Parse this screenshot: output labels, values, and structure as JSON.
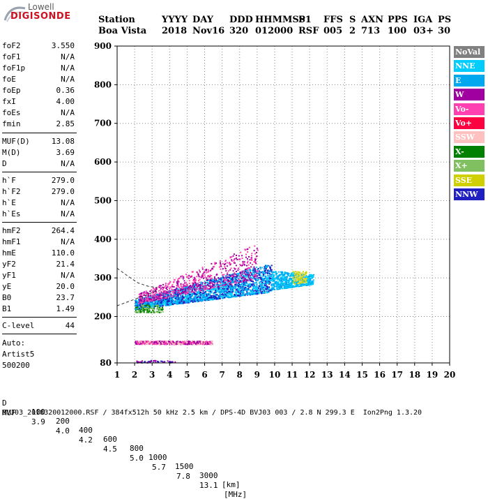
{
  "logo": {
    "line1": "Lowell",
    "line2": "DIGISONDE"
  },
  "header": {
    "line1": [
      "Station",
      "YYYY",
      "DAY",
      "DDD",
      "HHMMSS",
      "P1",
      "FFS",
      "S",
      "AXN",
      "PPS",
      "IGA",
      "PS"
    ],
    "line2": [
      "Boa Vista",
      "2018",
      "Nov16",
      "320",
      "012000",
      "RSF",
      "005",
      "2",
      "713",
      "100",
      "03+",
      "30"
    ]
  },
  "params_group1": [
    {
      "label": "foF2",
      "value": "3.550"
    },
    {
      "label": "foF1",
      "value": "N/A"
    },
    {
      "label": "foF1p",
      "value": "N/A"
    },
    {
      "label": "foE",
      "value": "N/A"
    },
    {
      "label": "foEp",
      "value": "0.36"
    },
    {
      "label": "fxI",
      "value": "4.00"
    },
    {
      "label": "foEs",
      "value": "N/A"
    },
    {
      "label": "fmin",
      "value": "2.85"
    }
  ],
  "params_group2": [
    {
      "label": "MUF(D)",
      "value": "13.08"
    },
    {
      "label": "M(D)",
      "value": "3.69"
    },
    {
      "label": "D",
      "value": "N/A"
    }
  ],
  "params_group3": [
    {
      "label": "h`F",
      "value": "279.0"
    },
    {
      "label": "h`F2",
      "value": "279.0"
    },
    {
      "label": "h`E",
      "value": "N/A"
    },
    {
      "label": "h`Es",
      "value": "N/A"
    }
  ],
  "params_group4": [
    {
      "label": "hmF2",
      "value": "264.4"
    },
    {
      "label": "hmF1",
      "value": "N/A"
    },
    {
      "label": "hmE",
      "value": "110.0"
    },
    {
      "label": "yF2",
      "value": "21.4"
    },
    {
      "label": "yF1",
      "value": "N/A"
    },
    {
      "label": "yE",
      "value": "20.0"
    },
    {
      "label": "B0",
      "value": "23.7"
    },
    {
      "label": "B1",
      "value": "1.49"
    }
  ],
  "params_group5": [
    {
      "label": "C-level",
      "value": "44"
    }
  ],
  "auto": {
    "line1": "Auto:",
    "line2": "Artist5",
    "line3": "500200"
  },
  "legend": [
    {
      "label": "NoVal",
      "bg": "#808080",
      "fg": "#ffffff"
    },
    {
      "label": "NNE",
      "bg": "#00ccff",
      "fg": "#ffffff"
    },
    {
      "label": "E",
      "bg": "#00a8f0",
      "fg": "#ffffff"
    },
    {
      "label": "W",
      "bg": "#a000a0",
      "fg": "#ffffff"
    },
    {
      "label": "Vo-",
      "bg": "#ff40b0",
      "fg": "#ffffff"
    },
    {
      "label": "Vo+",
      "bg": "#ff0040",
      "fg": "#ffffff"
    },
    {
      "label": "SSW",
      "bg": "#ffc0c0",
      "fg": "#ffffff"
    },
    {
      "label": "X-",
      "bg": "#008000",
      "fg": "#ffffff"
    },
    {
      "label": "X+",
      "bg": "#80c060",
      "fg": "#ffffff"
    },
    {
      "label": "SSE",
      "bg": "#d0d000",
      "fg": "#ffffff"
    },
    {
      "label": "NNW",
      "bg": "#2020c0",
      "fg": "#ffffff"
    }
  ],
  "footer": {
    "d_label": "D",
    "d_values": [
      "100",
      "200",
      "400",
      "600",
      "800",
      "1000",
      "1500",
      "3000",
      "[km]"
    ],
    "muf_label": "MUF",
    "muf_values": [
      "3.9",
      "4.0",
      "4.2",
      "4.5",
      "5.0",
      "5.7",
      "7.8",
      "13.1",
      "[MHz]"
    ],
    "file_line": "BVJ03_2018320012000.RSF / 384fx512h 50 kHz 2.5 km / DPS-4D BVJ03 003 / 2.8 N 299.3 E  Ion2Png 1.3.20"
  },
  "chart_data": {
    "type": "scatter",
    "xlim": [
      1,
      20
    ],
    "ylim": [
      80,
      900
    ],
    "x_ticks": [
      1,
      2,
      3,
      4,
      5,
      6,
      7,
      8,
      9,
      10,
      11,
      12,
      13,
      14,
      15,
      16,
      17,
      18,
      19,
      20
    ],
    "y_ticks": [
      80,
      200,
      300,
      400,
      500,
      600,
      700,
      800,
      900
    ],
    "grid": true,
    "ionogram_regions": [
      {
        "name": "F-trace main",
        "x_range": [
          2.0,
          9.8
        ],
        "y_base_start": 220,
        "y_base_end": 265,
        "y_top_start": 245,
        "y_top_end": 340,
        "colors": [
          "#00ccff",
          "#00a8f0",
          "#2020c0"
        ],
        "density": 2600
      },
      {
        "name": "F-trace W upper",
        "x_range": [
          2.2,
          9.0
        ],
        "y_base_start": 235,
        "y_base_end": 300,
        "y_top_start": 260,
        "y_top_end": 390,
        "colors": [
          "#a000a0",
          "#ff40b0"
        ],
        "density": 700
      },
      {
        "name": "F-trace extension",
        "x_range": [
          9.8,
          12.2
        ],
        "y_base_start": 270,
        "y_base_end": 285,
        "y_top_start": 320,
        "y_top_end": 310,
        "colors": [
          "#00ccff",
          "#00a8f0"
        ],
        "density": 600
      },
      {
        "name": "F-trace yellow",
        "x_range": [
          11.0,
          11.8
        ],
        "y_base_start": 285,
        "y_base_end": 290,
        "y_top_start": 318,
        "y_top_end": 318,
        "colors": [
          "#d0d000",
          "#e0e060"
        ],
        "density": 120
      },
      {
        "name": "low band",
        "x_range": [
          2.0,
          6.4
        ],
        "y_base_start": 130,
        "y_base_end": 130,
        "y_top_start": 138,
        "y_top_end": 138,
        "colors": [
          "#a000a0",
          "#ff40b0",
          "#ffc0c0"
        ],
        "density": 700
      },
      {
        "name": "green cluster",
        "x_range": [
          2.0,
          3.6
        ],
        "y_base_start": 212,
        "y_base_end": 212,
        "y_top_start": 232,
        "y_top_end": 232,
        "colors": [
          "#008000",
          "#80c060"
        ],
        "density": 120
      },
      {
        "name": "bottom dots",
        "x_range": [
          2.0,
          4.5
        ],
        "y_base_start": 82,
        "y_base_end": 82,
        "y_top_start": 88,
        "y_top_end": 88,
        "colors": [
          "#a000a0",
          "#2020c0"
        ],
        "density": 60
      }
    ],
    "profile_curves": [
      {
        "name": "upper dashed",
        "points": [
          [
            1.0,
            325
          ],
          [
            1.6,
            305
          ],
          [
            2.2,
            287
          ],
          [
            2.8,
            278
          ],
          [
            3.3,
            275
          ]
        ]
      },
      {
        "name": "lower dashed",
        "points": [
          [
            1.0,
            228
          ],
          [
            1.6,
            238
          ],
          [
            2.2,
            248
          ],
          [
            2.8,
            258
          ],
          [
            3.3,
            268
          ]
        ]
      }
    ]
  }
}
